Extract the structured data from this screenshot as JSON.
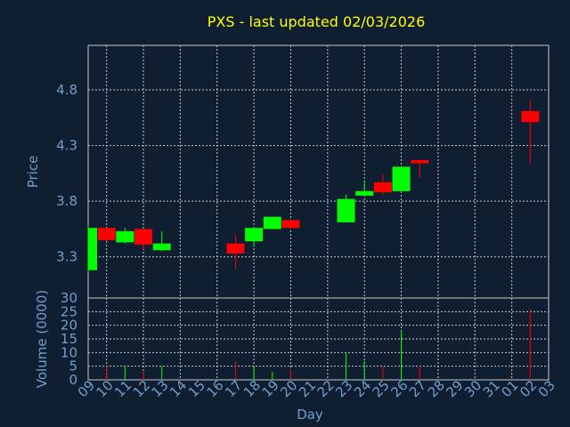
{
  "chart_data": {
    "type": "candlestick",
    "title": "PXS - last updated 02/03/2026",
    "xlabel": "Day",
    "price_ylabel": "Price",
    "volume_ylabel": "Volume (0000)",
    "price_ylim": [
      2.93,
      5.2
    ],
    "price_yticks": [
      "3.3",
      "3.8",
      "4.3",
      "4.8"
    ],
    "volume_ylim": [
      0,
      30
    ],
    "volume_yticks": [
      "0",
      "5",
      "10",
      "15",
      "20",
      "25",
      "30"
    ],
    "x_ticks": [
      "09",
      "10",
      "11",
      "12",
      "13",
      "14",
      "15",
      "16",
      "17",
      "18",
      "19",
      "20",
      "21",
      "22",
      "23",
      "24",
      "25",
      "26",
      "27",
      "28",
      "29",
      "30",
      "31",
      "01",
      "02",
      "03"
    ],
    "grid": true,
    "colors": {
      "background": "#0f1e30",
      "up": "#00ff00",
      "down": "#ff0000",
      "title": "#ffff00",
      "axis_text": "#6f9fce",
      "grid": "#c8c8c8"
    },
    "candles": [
      {
        "day": "09",
        "open": 3.18,
        "high": 3.57,
        "low": 3.17,
        "close": 3.56,
        "volume": 0
      },
      {
        "day": "10",
        "open": 3.56,
        "high": 3.56,
        "low": 3.44,
        "close": 3.45,
        "volume": 5
      },
      {
        "day": "11",
        "open": 3.43,
        "high": 3.56,
        "low": 3.42,
        "close": 3.53,
        "volume": 5
      },
      {
        "day": "12",
        "open": 3.55,
        "high": 3.55,
        "low": 3.37,
        "close": 3.41,
        "volume": 3
      },
      {
        "day": "13",
        "open": 3.36,
        "high": 3.53,
        "low": 3.35,
        "close": 3.42,
        "volume": 5
      },
      {
        "day": "17",
        "open": 3.42,
        "high": 3.5,
        "low": 3.19,
        "close": 3.33,
        "volume": 7
      },
      {
        "day": "18",
        "open": 3.44,
        "high": 3.56,
        "low": 3.39,
        "close": 3.56,
        "volume": 5
      },
      {
        "day": "19",
        "open": 3.55,
        "high": 3.66,
        "low": 3.55,
        "close": 3.66,
        "volume": 3
      },
      {
        "day": "20",
        "open": 3.63,
        "high": 3.63,
        "low": 3.55,
        "close": 3.56,
        "volume": 4
      },
      {
        "day": "23",
        "open": 3.61,
        "high": 3.86,
        "low": 3.61,
        "close": 3.82,
        "volume": 10
      },
      {
        "day": "24",
        "open": 3.85,
        "high": 3.98,
        "low": 3.85,
        "close": 3.89,
        "volume": 7
      },
      {
        "day": "25",
        "open": 3.97,
        "high": 4.04,
        "low": 3.85,
        "close": 3.88,
        "volume": 5
      },
      {
        "day": "26",
        "open": 3.89,
        "high": 4.11,
        "low": 3.88,
        "close": 4.11,
        "volume": 18
      },
      {
        "day": "27",
        "open": 4.17,
        "high": 4.17,
        "low": 4.01,
        "close": 4.14,
        "volume": 5
      },
      {
        "day": "02",
        "open": 4.61,
        "high": 4.71,
        "low": 4.14,
        "close": 4.51,
        "volume": 26
      }
    ]
  }
}
